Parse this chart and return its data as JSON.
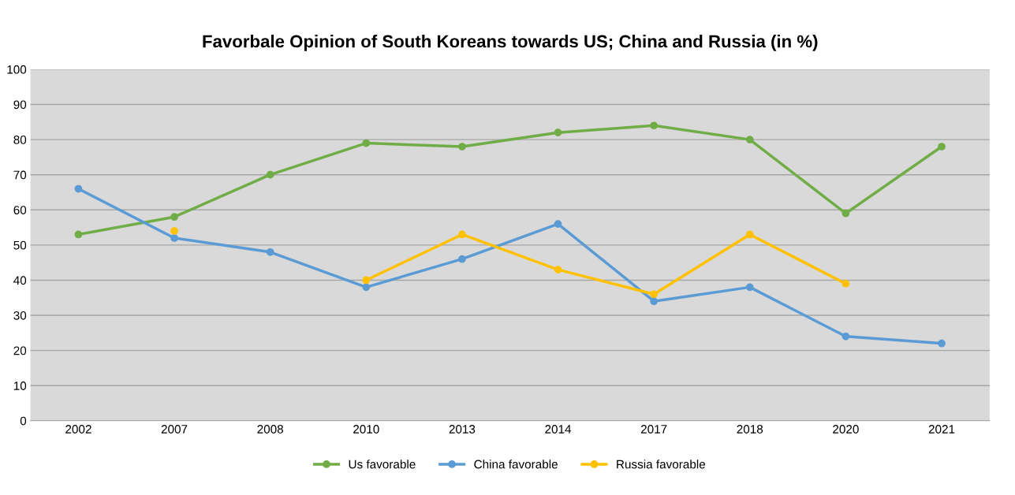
{
  "chart_data": {
    "type": "line",
    "title": "Favorbale Opinion of South Koreans towards US; China and Russia (in %)",
    "categories": [
      "2002",
      "2007",
      "2008",
      "2010",
      "2013",
      "2014",
      "2017",
      "2018",
      "2020",
      "2021"
    ],
    "series": [
      {
        "name": "Us favorable",
        "color": "#70ad47",
        "values": [
          53,
          58,
          70,
          79,
          78,
          82,
          84,
          80,
          59,
          78
        ]
      },
      {
        "name": "China favorable",
        "color": "#5b9bd5",
        "values": [
          66,
          52,
          48,
          38,
          46,
          56,
          34,
          38,
          24,
          22
        ]
      },
      {
        "name": "Russia favorable",
        "color": "#ffc000",
        "values": [
          null,
          54,
          null,
          40,
          53,
          43,
          36,
          53,
          39,
          null
        ]
      }
    ],
    "ylim": [
      0,
      100
    ],
    "yticks": [
      0,
      10,
      20,
      30,
      40,
      50,
      60,
      70,
      80,
      90,
      100
    ],
    "grid": "y",
    "legend": "bottom",
    "marker": "circle",
    "line_style": "solid"
  }
}
